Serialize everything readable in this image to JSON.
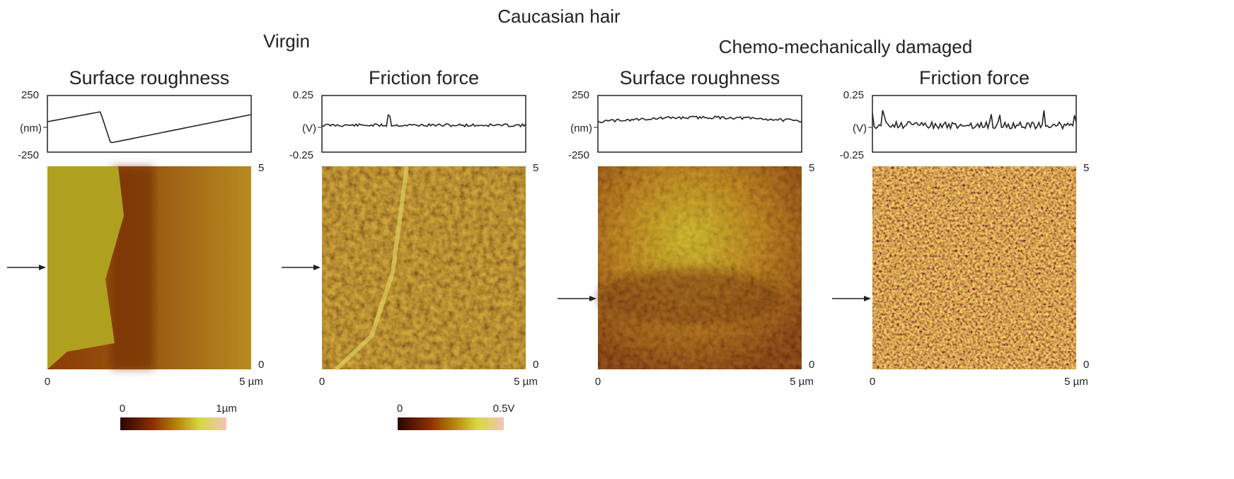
{
  "figure": {
    "title": "Caucasian hair",
    "groups": [
      {
        "label": "Virgin"
      },
      {
        "label": "Chemo-mechanically damaged"
      }
    ],
    "panels": [
      {
        "title": "Surface roughness",
        "profile_top": "250",
        "profile_unit": "(nm)",
        "profile_bottom": "-250",
        "image_top": "5",
        "image_bottom": "0",
        "x_start": "0",
        "x_end": "5 µm"
      },
      {
        "title": "Friction force",
        "profile_top": "0.25",
        "profile_unit": "(V)",
        "profile_bottom": "-0.25",
        "image_top": "5",
        "image_bottom": "0",
        "x_start": "0",
        "x_end": "5 µm"
      },
      {
        "title": "Surface roughness",
        "profile_top": "250",
        "profile_unit": "(nm)",
        "profile_bottom": "-250",
        "image_top": "5",
        "image_bottom": "0",
        "x_start": "0",
        "x_end": "5 µm"
      },
      {
        "title": "Friction force",
        "profile_top": "0.25",
        "profile_unit": "(V)",
        "profile_bottom": "-0.25",
        "image_top": "5",
        "image_bottom": "0",
        "x_start": "0",
        "x_end": "5 µm"
      }
    ],
    "colorbars": [
      {
        "min": "0",
        "max": "1µm"
      },
      {
        "min": "0",
        "max": "0.5V"
      }
    ]
  }
}
